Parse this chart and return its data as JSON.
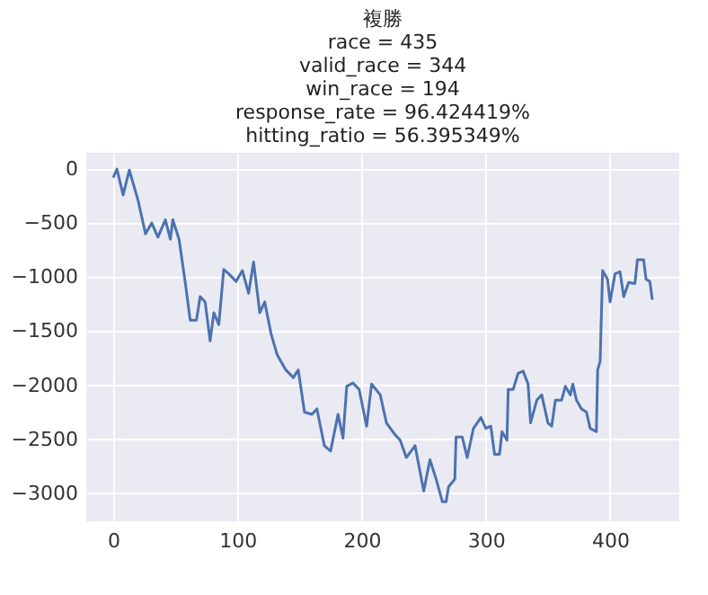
{
  "chart_data": {
    "type": "line",
    "title": "複勝\nrace = 435\nvalid_race = 344\nwin_race = 194\nresponse_rate = 96.424419%\nhitting_ratio = 56.395349%",
    "series": [
      {
        "color": "#4c72b0",
        "x": [
          0,
          3,
          8,
          13,
          20,
          26,
          31,
          36,
          42,
          46,
          48,
          53,
          58,
          62,
          67,
          70,
          74,
          78,
          81,
          85,
          89,
          93,
          99,
          104,
          109,
          113,
          118,
          122,
          127,
          132,
          139,
          145,
          149,
          154,
          160,
          164,
          170,
          175,
          181,
          185,
          188,
          193,
          198,
          204,
          208,
          215,
          220,
          227,
          231,
          236,
          243,
          250,
          255,
          260,
          265,
          268,
          270,
          275,
          276,
          281,
          285,
          290,
          296,
          300,
          304,
          307,
          311,
          313,
          317,
          318,
          322,
          326,
          330,
          334,
          336,
          341,
          345,
          350,
          353,
          356,
          361,
          364,
          368,
          370,
          373,
          377,
          381,
          384,
          389,
          390,
          392,
          394,
          398,
          400,
          404,
          408,
          411,
          415,
          420,
          422,
          427,
          429,
          432,
          434
        ],
        "values": [
          -80,
          0,
          -240,
          -10,
          -290,
          -600,
          -500,
          -630,
          -470,
          -650,
          -470,
          -650,
          -1050,
          -1400,
          -1400,
          -1180,
          -1230,
          -1590,
          -1330,
          -1440,
          -930,
          -970,
          -1040,
          -940,
          -1150,
          -860,
          -1330,
          -1230,
          -1520,
          -1720,
          -1860,
          -1930,
          -1860,
          -2250,
          -2270,
          -2220,
          -2560,
          -2610,
          -2270,
          -2490,
          -2010,
          -1980,
          -2040,
          -2380,
          -1990,
          -2090,
          -2350,
          -2460,
          -2510,
          -2670,
          -2560,
          -2980,
          -2690,
          -2870,
          -3080,
          -3080,
          -2940,
          -2870,
          -2480,
          -2480,
          -2670,
          -2400,
          -2300,
          -2400,
          -2380,
          -2640,
          -2640,
          -2430,
          -2510,
          -2040,
          -2040,
          -1890,
          -1870,
          -1990,
          -2350,
          -2140,
          -2090,
          -2350,
          -2380,
          -2140,
          -2140,
          -2010,
          -2090,
          -1990,
          -2140,
          -2220,
          -2250,
          -2400,
          -2430,
          -1860,
          -1780,
          -940,
          -1020,
          -1230,
          -970,
          -950,
          -1180,
          -1050,
          -1060,
          -840,
          -840,
          -1020,
          -1040,
          -1210
        ]
      }
    ],
    "xlim": [
      -21.7,
      455.7
    ],
    "ylim": [
      -3260,
      150
    ],
    "xticks": [
      0,
      100,
      200,
      300,
      400
    ],
    "yticks": [
      -3000,
      -2500,
      -2000,
      -1500,
      -1000,
      -500,
      0
    ],
    "grid": true,
    "marker": "none",
    "line_style": "solid"
  }
}
